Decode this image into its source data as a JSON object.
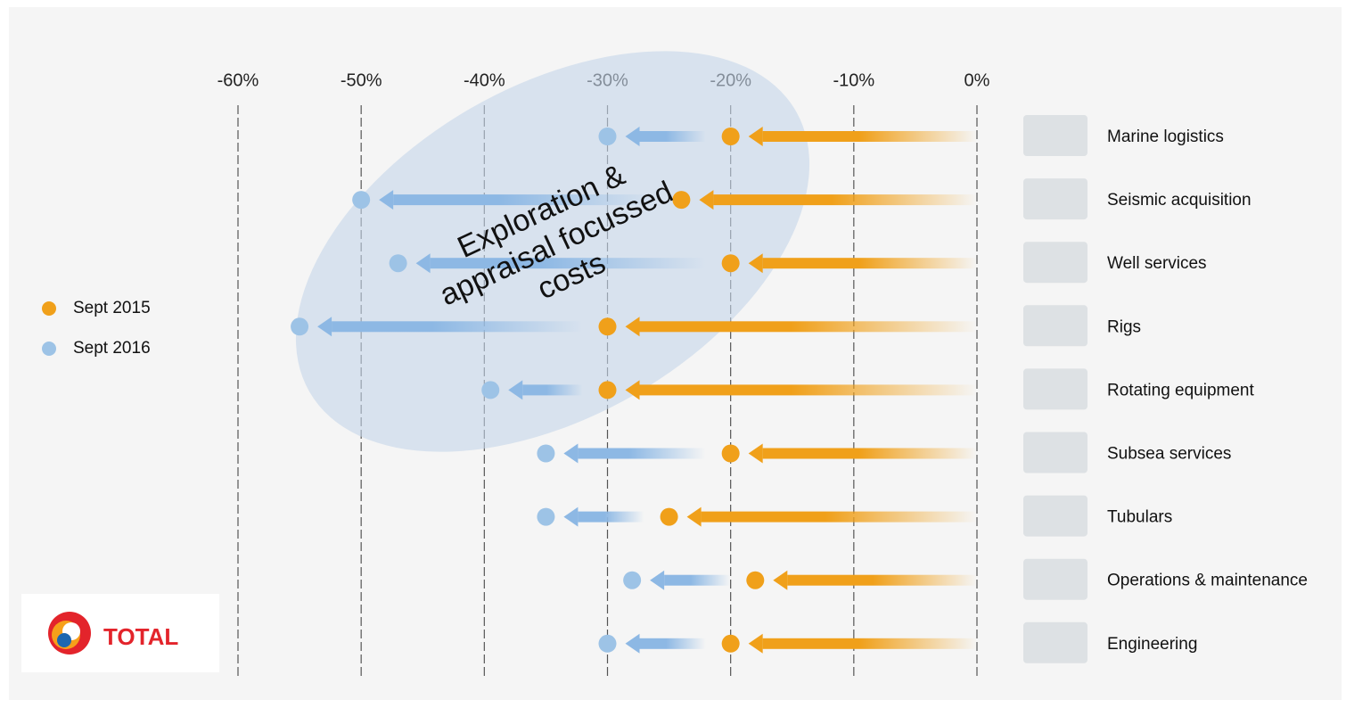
{
  "chart_data": {
    "type": "dot-arrow",
    "categories": [
      "Marine logistics",
      "Seismic acquisition",
      "Well services",
      "Rigs",
      "Rotating equipment",
      "Subsea services",
      "Tubulars",
      "Operations & maintenance",
      "Engineering"
    ],
    "series": [
      {
        "name": "Sept 2015",
        "color": "#f0a01a",
        "values": [
          -20,
          -24,
          -20,
          -30,
          -30,
          -20,
          -25,
          -18,
          -20
        ]
      },
      {
        "name": "Sept 2016",
        "color": "#9dc3e6",
        "values": [
          -30,
          -50,
          -47,
          -55,
          -39.5,
          -35,
          -35,
          -28,
          -30
        ]
      }
    ],
    "xlim": [
      -60,
      0
    ],
    "xticks": [
      {
        "value": -60,
        "label": "-60%"
      },
      {
        "value": -50,
        "label": "-50%"
      },
      {
        "value": -40,
        "label": "-40%"
      },
      {
        "value": -30,
        "label": "-30%"
      },
      {
        "value": -20,
        "label": "-20%"
      },
      {
        "value": -10,
        "label": "-10%"
      },
      {
        "value": 0,
        "label": "0%"
      }
    ],
    "grid": true,
    "legend": "left",
    "annotation": [
      "Exploration &",
      "appraisal focussed",
      "costs"
    ],
    "logo": "TOTAL"
  }
}
